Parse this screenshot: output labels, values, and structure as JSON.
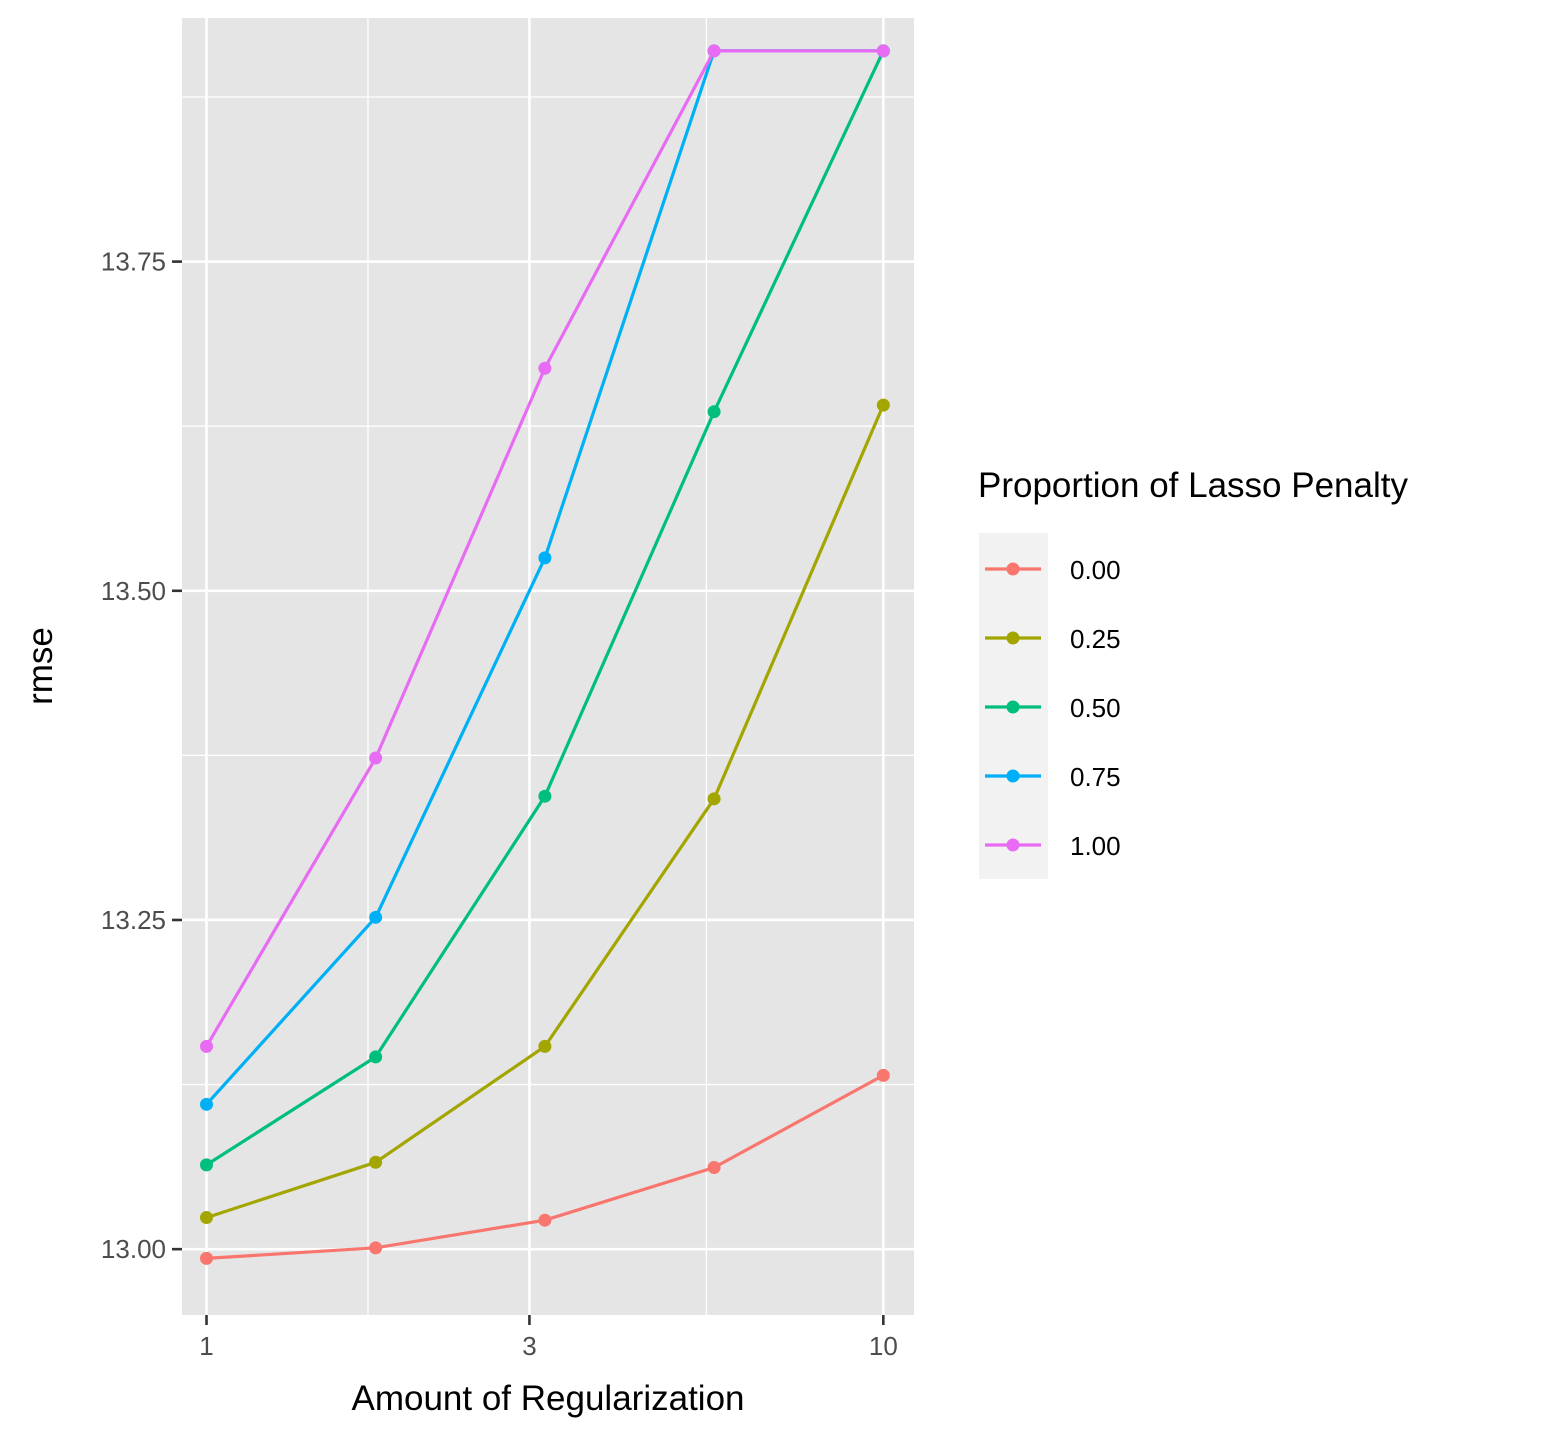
{
  "chart_data": {
    "type": "line",
    "xlabel": "Amount of Regularization",
    "ylabel": "rmse",
    "x_scale": "log10",
    "xlim": [
      0.92,
      11.1
    ],
    "ylim": [
      12.95,
      13.935
    ],
    "x_ticks": [
      1,
      3,
      10
    ],
    "x_tick_labels": [
      "1",
      "3",
      "10"
    ],
    "y_ticks": [
      13.0,
      13.25,
      13.5,
      13.75
    ],
    "y_tick_labels": [
      "13.00",
      "13.25",
      "13.50",
      "13.75"
    ],
    "grid": true,
    "legend": {
      "title": "Proportion of Lasso Penalty",
      "position": "right"
    },
    "x": [
      1,
      1.778,
      3.162,
      5.623,
      10
    ],
    "series": [
      {
        "name": "0.00",
        "color": "#F8766D",
        "values": [
          12.993,
          13.001,
          13.022,
          13.062,
          13.132
        ]
      },
      {
        "name": "0.25",
        "color": "#A3A500",
        "values": [
          13.024,
          13.066,
          13.154,
          13.342,
          13.641
        ]
      },
      {
        "name": "0.50",
        "color": "#00BF7D",
        "values": [
          13.064,
          13.146,
          13.344,
          13.636,
          13.91
        ]
      },
      {
        "name": "0.75",
        "color": "#00B0F6",
        "values": [
          13.11,
          13.252,
          13.525,
          13.91,
          13.91
        ]
      },
      {
        "name": "1.00",
        "color": "#E76BF3",
        "values": [
          13.154,
          13.373,
          13.669,
          13.91,
          13.91
        ]
      }
    ]
  }
}
